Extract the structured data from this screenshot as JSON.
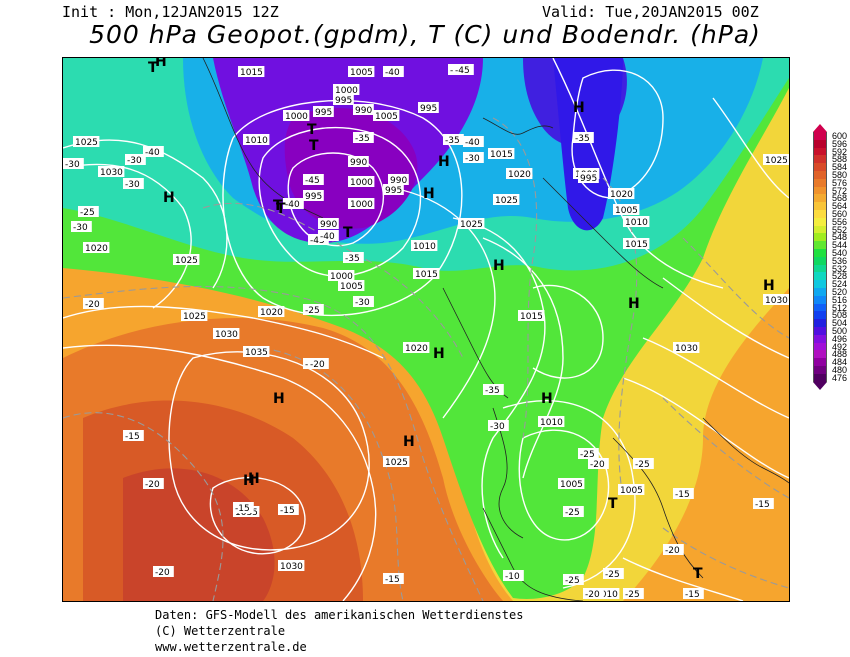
{
  "header": {
    "init": "Init : Mon,12JAN2015 12Z",
    "valid": "Valid: Tue,20JAN2015 00Z",
    "title": "500 hPa Geopot.(gpdm), T (C) und Bodendr. (hPa)"
  },
  "legend": {
    "values": [
      "600",
      "596",
      "592",
      "588",
      "584",
      "580",
      "576",
      "572",
      "568",
      "564",
      "560",
      "556",
      "552",
      "548",
      "544",
      "540",
      "536",
      "532",
      "528",
      "524",
      "520",
      "516",
      "512",
      "508",
      "504",
      "500",
      "496",
      "492",
      "488",
      "484",
      "480",
      "476"
    ],
    "colors": [
      "#d0004e",
      "#b8002a",
      "#c8102a",
      "#d0302a",
      "#d84a28",
      "#e06228",
      "#e87a2a",
      "#f0922c",
      "#f4aa30",
      "#f8c438",
      "#fcdc40",
      "#f4ee40",
      "#d4ee30",
      "#a0ec20",
      "#60e830",
      "#20e040",
      "#10d860",
      "#10d890",
      "#10d8c0",
      "#10c8e0",
      "#10a8f0",
      "#1088f8",
      "#1060f8",
      "#1040f0",
      "#2020e0",
      "#5010e0",
      "#8010e0",
      "#a010d8",
      "#b010c0",
      "#9000a0",
      "#700080",
      "#500060"
    ]
  },
  "map": {
    "pressure_labels": [
      "1015",
      "1005",
      "1000",
      "995",
      "990",
      "1000",
      "995",
      "1005",
      "1025",
      "1030",
      "1010",
      "995",
      "990",
      "1000",
      "990",
      "995",
      "995",
      "1000",
      "990",
      "1000",
      "1005",
      "1010",
      "1015",
      "1025",
      "1020",
      "1025",
      "1020",
      "1025",
      "1030",
      "1035",
      "1020",
      "1015",
      "1020",
      "1010",
      "1005",
      "1005",
      "1000",
      "995",
      "1015",
      "1020",
      "1005",
      "1010",
      "1015",
      "1025",
      "1030",
      "1025",
      "1035",
      "1030",
      "1010",
      "1025",
      "1030"
    ],
    "temperature_labels": [
      "-45",
      "-40",
      "-45",
      "-35",
      "-40",
      "-35",
      "-30",
      "-45",
      "-40",
      "-45",
      "-40",
      "-35",
      "-40",
      "-30",
      "-35",
      "-30",
      "-30",
      "-25",
      "-30",
      "-25",
      "-20",
      "-25",
      "-30",
      "-35",
      "-30",
      "-30",
      "-25",
      "-20",
      "-25",
      "-25",
      "-20",
      "-15",
      "-20",
      "-20",
      "-15",
      "-15",
      "-15",
      "-15",
      "-15",
      "-10",
      "-20",
      "-25",
      "-20",
      "-15",
      "-25",
      "-25"
    ],
    "pressure_centers": [
      "T",
      "T",
      "T",
      "T",
      "T",
      "T",
      "H",
      "H",
      "H",
      "H",
      "H",
      "H",
      "H",
      "H",
      "H",
      "H",
      "H",
      "H",
      "H",
      "T",
      "T",
      "H"
    ]
  },
  "footer": {
    "line1": "Daten: GFS-Modell des amerikanischen Wetterdienstes",
    "line2": "(C) Wetterzentrale",
    "line3": "www.wetterzentrale.de"
  }
}
